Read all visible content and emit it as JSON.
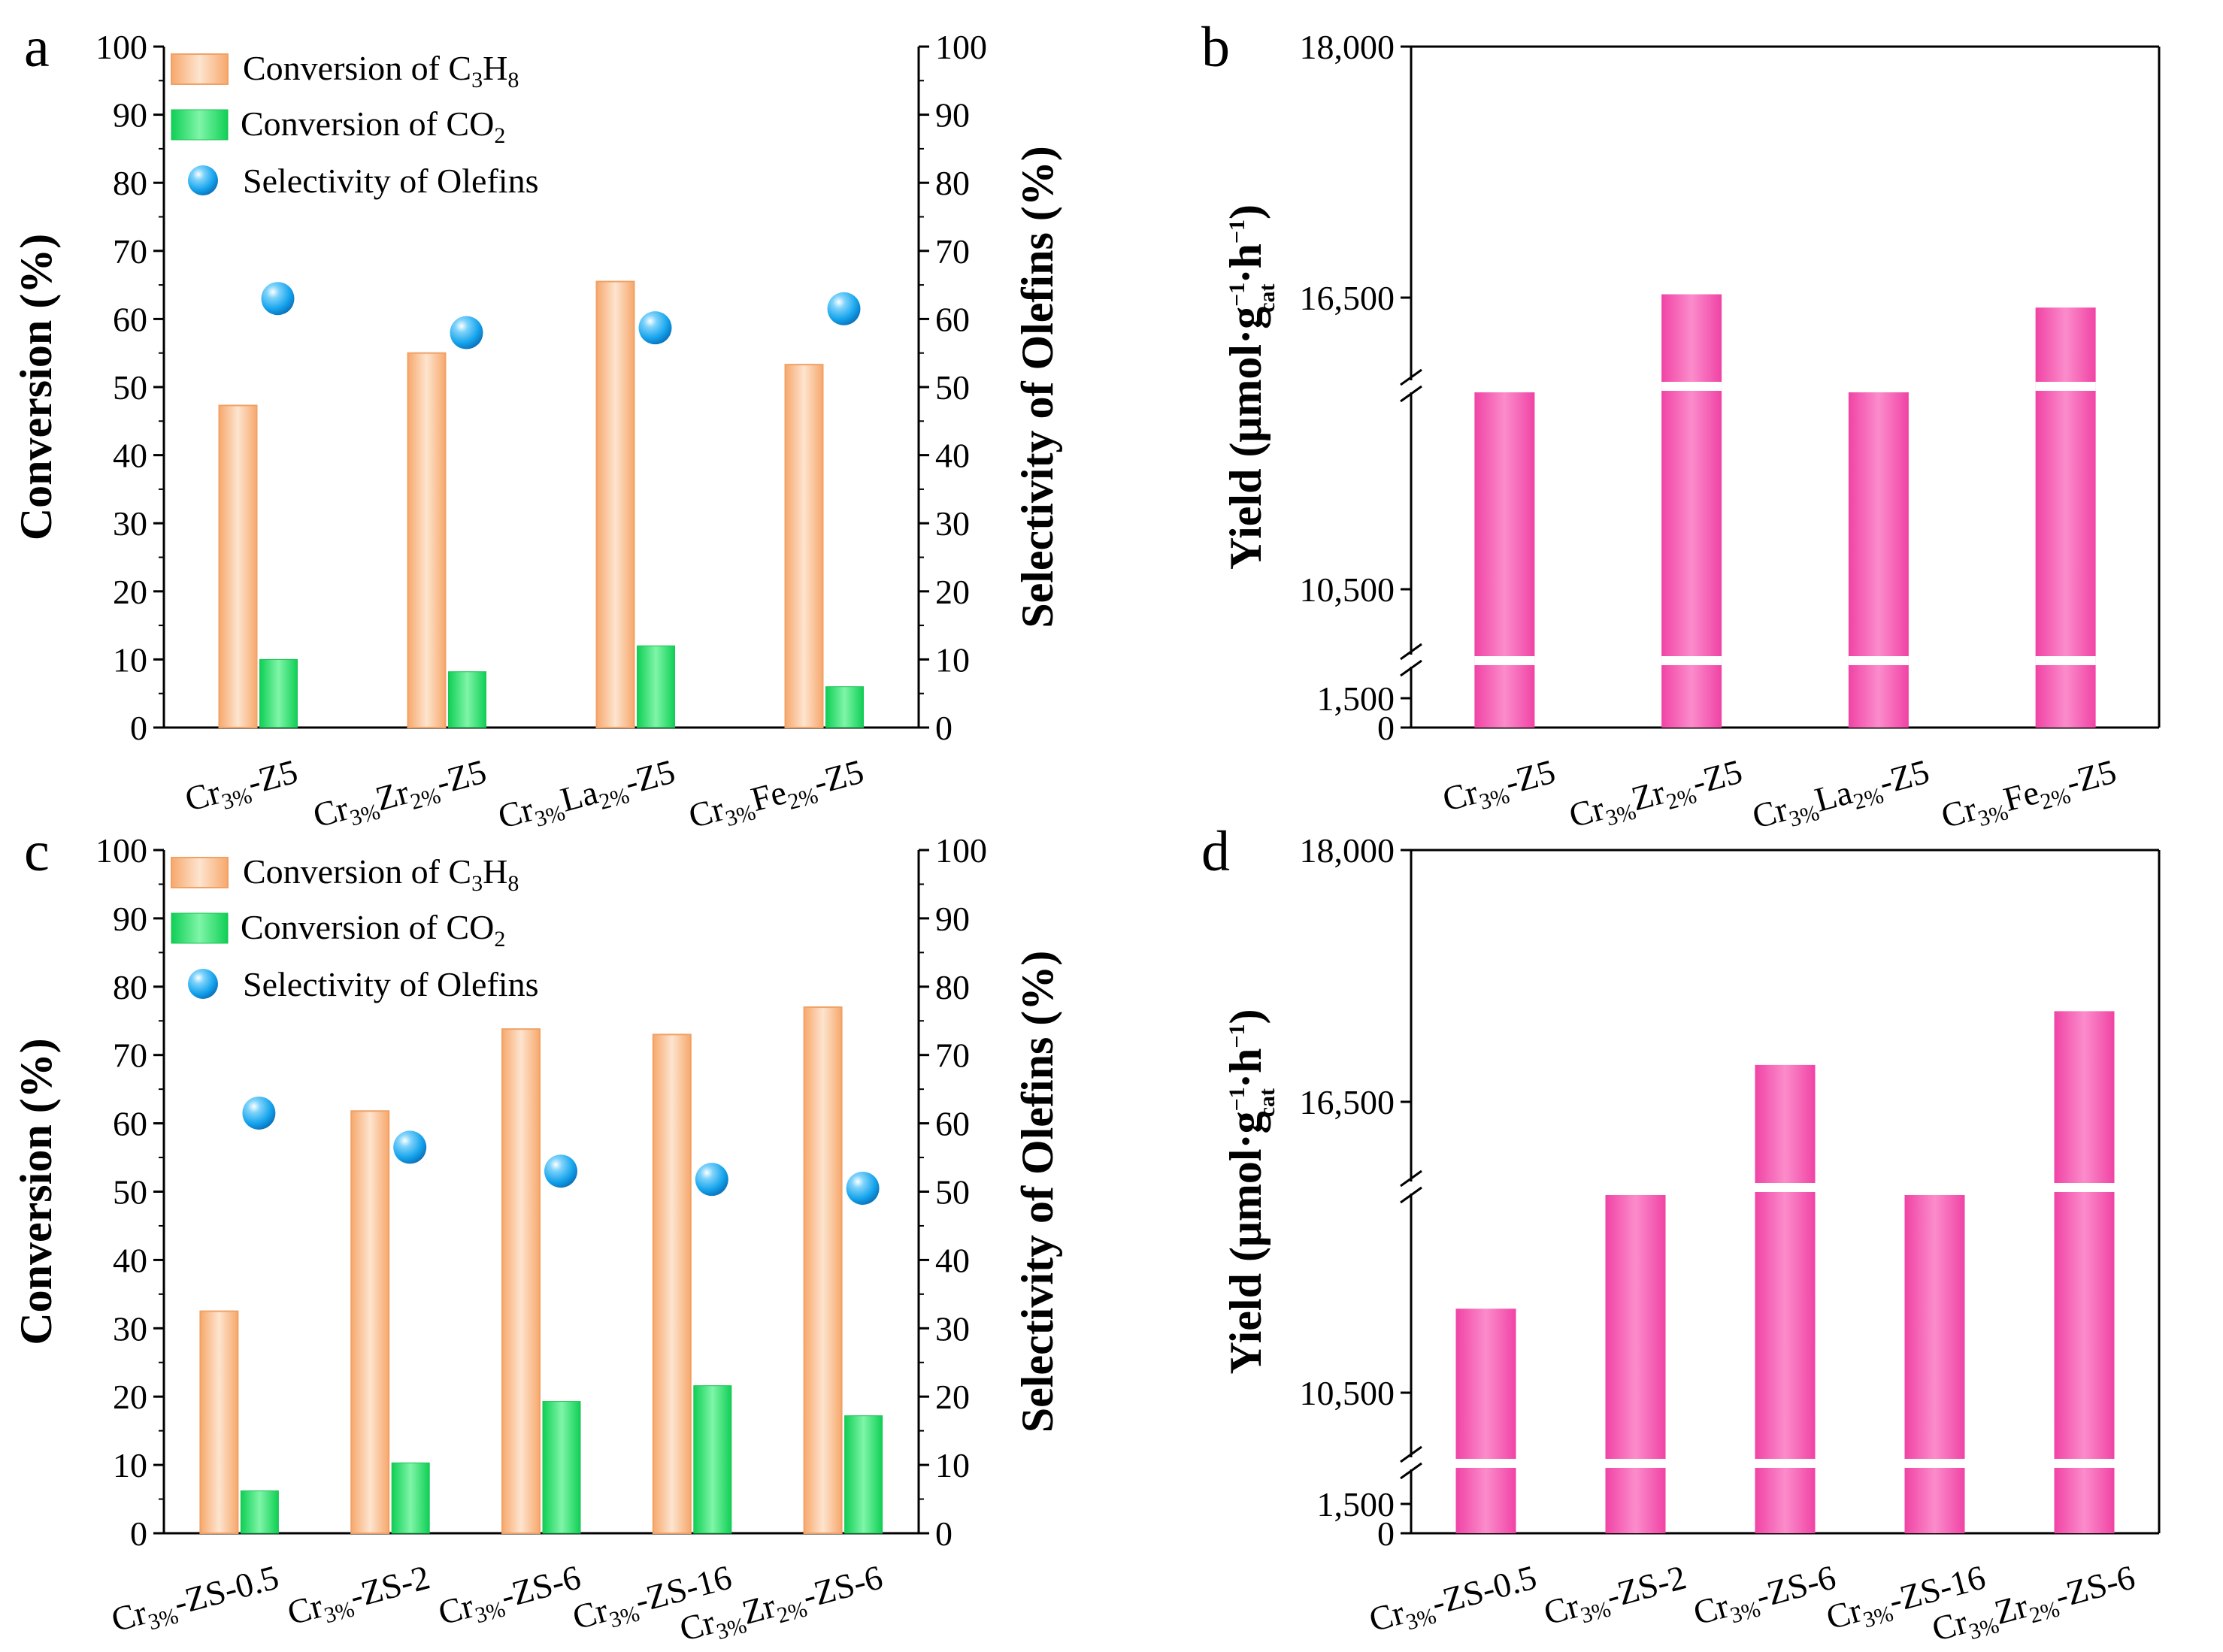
{
  "colors": {
    "c3h8_bar": "#fcc8a2",
    "c3h8_edge": "#f0a266",
    "co2_bar": "#2ee571",
    "co2_edge": "#1cc255",
    "olefin_dot": "#15a6ee",
    "yield_bar": "#f35cb2",
    "axis": "#000000"
  },
  "legend": {
    "c3h8": {
      "text": "Conversion of C",
      "s1": "3",
      "m": "H",
      "s2": "8"
    },
    "co2": {
      "text": "Conversion of  CO",
      "s1": "2"
    },
    "olefins": {
      "text": "Selectivity of Olefins"
    }
  },
  "axis_titles": {
    "conversion": "Conversion (%)",
    "selectivity": "Selectivity of Olefins (%)",
    "yield": {
      "a": "Yield (μmol·g",
      "sup1": "−1",
      "sub1": "cat",
      "b": "·h",
      "sup2": "−1",
      "c": ")"
    }
  },
  "chart_data": [
    {
      "panel": "a",
      "type": "bar",
      "categories": [
        {
          "base": "Cr",
          "parts": [
            [
              "sub",
              "3%"
            ],
            [
              "txt",
              "-Z5"
            ]
          ]
        },
        {
          "base": "Cr",
          "parts": [
            [
              "sub",
              "3%"
            ],
            [
              "txt",
              "Zr"
            ],
            [
              "sub",
              "2%"
            ],
            [
              "txt",
              "-Z5"
            ]
          ]
        },
        {
          "base": "Cr",
          "parts": [
            [
              "sub",
              "3%"
            ],
            [
              "txt",
              "La"
            ],
            [
              "sub",
              "2%"
            ],
            [
              "txt",
              "-Z5"
            ]
          ]
        },
        {
          "base": "Cr",
          "parts": [
            [
              "sub",
              "3%"
            ],
            [
              "txt",
              "Fe"
            ],
            [
              "sub",
              "2%"
            ],
            [
              "txt",
              "-Z5"
            ]
          ]
        }
      ],
      "series": [
        {
          "name": "Conversion of C3H8",
          "values": [
            47.3,
            55.0,
            65.5,
            53.3
          ]
        },
        {
          "name": "Conversion of CO2",
          "values": [
            10.0,
            8.2,
            12.0,
            6.0
          ]
        },
        {
          "name": "Selectivity of Olefins",
          "values": [
            63.0,
            58.0,
            58.7,
            61.5
          ]
        }
      ],
      "ylim": [
        0,
        100
      ],
      "yticks": [
        "0",
        "10",
        "20",
        "30",
        "40",
        "50",
        "60",
        "70",
        "80",
        "90",
        "100"
      ],
      "ylabel": "Conversion (%)",
      "y2label": "Selectivity of Olefins (%)"
    },
    {
      "panel": "b",
      "type": "bar",
      "categories": [
        {
          "base": "Cr",
          "parts": [
            [
              "sub",
              "3%"
            ],
            [
              "txt",
              "-Z5"
            ]
          ]
        },
        {
          "base": "Cr",
          "parts": [
            [
              "sub",
              "3%"
            ],
            [
              "txt",
              "Zr"
            ],
            [
              "sub",
              "2%"
            ],
            [
              "txt",
              "-Z5"
            ]
          ]
        },
        {
          "base": "Cr",
          "parts": [
            [
              "sub",
              "3%"
            ],
            [
              "txt",
              "La"
            ],
            [
              "sub",
              "2%"
            ],
            [
              "txt",
              "-Z5"
            ]
          ]
        },
        {
          "base": "Cr",
          "parts": [
            [
              "sub",
              "3%"
            ],
            [
              "txt",
              "Fe"
            ],
            [
              "sub",
              "2%"
            ],
            [
              "txt",
              "-Z5"
            ]
          ]
        }
      ],
      "series": [
        {
          "name": "Yield",
          "values": [
            14500,
            16520,
            14500,
            16290
          ]
        }
      ],
      "yticks": [
        "0",
        "1,500",
        "10,500",
        "16,500",
        "18,000"
      ],
      "ylabel": "Yield (μmol·g−1cat·h−1)",
      "axis_breaks": true
    },
    {
      "panel": "c",
      "type": "bar",
      "categories": [
        {
          "base": "Cr",
          "parts": [
            [
              "sub",
              "3%"
            ],
            [
              "txt",
              "-ZS-0.5"
            ]
          ]
        },
        {
          "base": "Cr",
          "parts": [
            [
              "sub",
              "3%"
            ],
            [
              "txt",
              "-ZS-2"
            ]
          ]
        },
        {
          "base": "Cr",
          "parts": [
            [
              "sub",
              "3%"
            ],
            [
              "txt",
              "-ZS-6"
            ]
          ]
        },
        {
          "base": "Cr",
          "parts": [
            [
              "sub",
              "3%"
            ],
            [
              "txt",
              "-ZS-16"
            ]
          ]
        },
        {
          "base": "Cr",
          "parts": [
            [
              "sub",
              "3%"
            ],
            [
              "txt",
              "Zr"
            ],
            [
              "sub",
              "2%"
            ],
            [
              "txt",
              "-ZS-6"
            ]
          ]
        }
      ],
      "series": [
        {
          "name": "Conversion of C3H8",
          "values": [
            32.5,
            61.8,
            73.8,
            73.0,
            77.0
          ]
        },
        {
          "name": "Conversion of CO2",
          "values": [
            6.2,
            10.3,
            19.3,
            21.6,
            17.2
          ]
        },
        {
          "name": "Selectivity of Olefins",
          "values": [
            61.5,
            56.5,
            53.0,
            51.8,
            50.5
          ]
        }
      ],
      "ylim": [
        0,
        100
      ],
      "yticks": [
        "0",
        "10",
        "20",
        "30",
        "40",
        "50",
        "60",
        "70",
        "80",
        "90",
        "100"
      ],
      "ylabel": "Conversion (%)",
      "y2label": "Selectivity of Olefins (%)"
    },
    {
      "panel": "d",
      "type": "bar",
      "categories": [
        {
          "base": "Cr",
          "parts": [
            [
              "sub",
              "3%"
            ],
            [
              "txt",
              "-ZS-0.5"
            ]
          ]
        },
        {
          "base": "Cr",
          "parts": [
            [
              "sub",
              "3%"
            ],
            [
              "txt",
              "-ZS-2"
            ]
          ]
        },
        {
          "base": "Cr",
          "parts": [
            [
              "sub",
              "3%"
            ],
            [
              "txt",
              "-ZS-6"
            ]
          ]
        },
        {
          "base": "Cr",
          "parts": [
            [
              "sub",
              "3%"
            ],
            [
              "txt",
              "-ZS-16"
            ]
          ]
        },
        {
          "base": "Cr",
          "parts": [
            [
              "sub",
              "3%"
            ],
            [
              "txt",
              "Zr"
            ],
            [
              "sub",
              "2%"
            ],
            [
              "txt",
              "-ZS-6"
            ]
          ]
        }
      ],
      "series": [
        {
          "name": "Yield",
          "values": [
            12200,
            14500,
            16720,
            14500,
            17040
          ]
        }
      ],
      "yticks": [
        "0",
        "1,500",
        "10,500",
        "16,500",
        "18,000"
      ],
      "ylabel": "Yield (μmol·g−1cat·h−1)",
      "axis_breaks": true
    }
  ]
}
